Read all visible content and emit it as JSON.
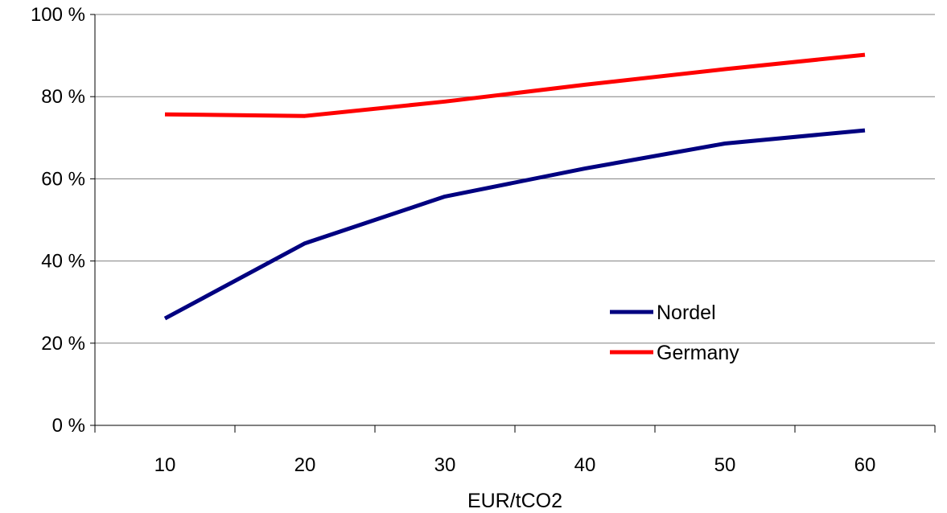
{
  "chart_data": {
    "type": "line",
    "title": "",
    "xlabel": "EUR/tCO2",
    "ylabel": "",
    "x": [
      10,
      20,
      30,
      40,
      50,
      60
    ],
    "x_tick_labels": [
      "10",
      "20",
      "30",
      "40",
      "50",
      "60"
    ],
    "ylim": [
      0,
      100
    ],
    "y_tick_labels": [
      "0 %",
      "20 %",
      "40 %",
      "60 %",
      "80 %",
      "100 %"
    ],
    "grid": true,
    "legend_position": "lower-right",
    "series": [
      {
        "name": "Nordel",
        "color": "#000080",
        "values": [
          26,
          44.3,
          55.7,
          62.5,
          68.6,
          71.8
        ]
      },
      {
        "name": "Germany",
        "color": "#ff0000",
        "values": [
          75.7,
          75.3,
          78.8,
          82.9,
          86.7,
          90.2
        ]
      }
    ]
  }
}
